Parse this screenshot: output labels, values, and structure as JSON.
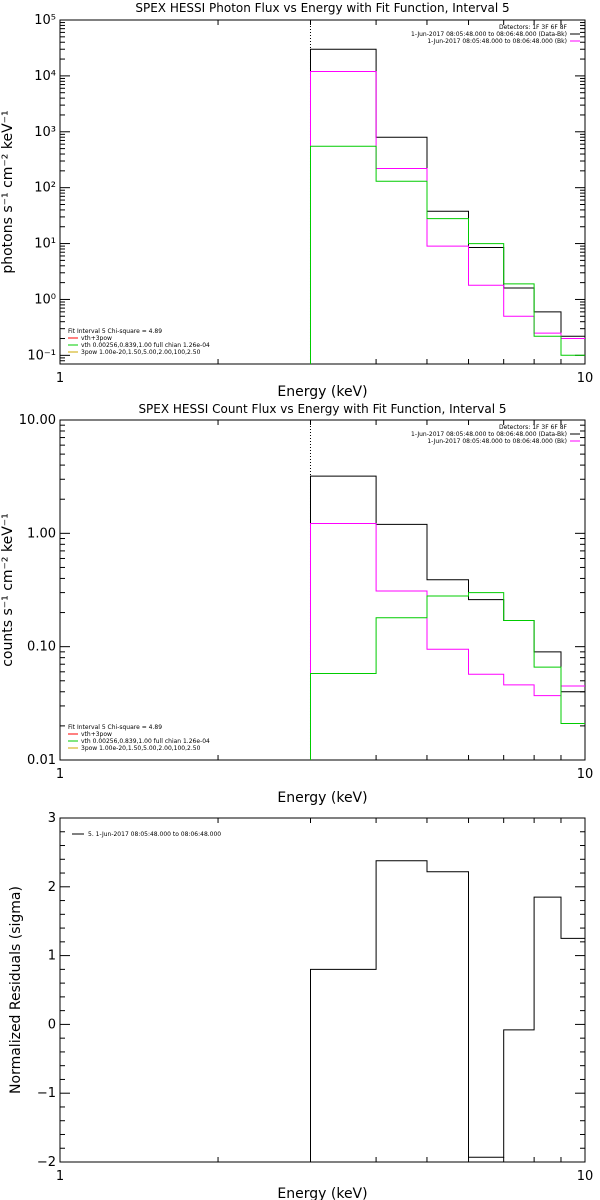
{
  "chart_data": [
    {
      "type": "line",
      "title": "SPEX HESSI Photon Flux vs Energy with Fit Function, Interval 5",
      "xlabel": "Energy (keV)",
      "ylabel": "photons s⁻¹ cm⁻² keV⁻¹",
      "xscale": "log",
      "yscale": "log",
      "xlim": [
        1,
        10
      ],
      "ylim": [
        0.07,
        100000
      ],
      "x_ticks": [
        "1",
        "10"
      ],
      "y_ticks": [
        "10⁻¹",
        "10⁰",
        "10¹",
        "10²",
        "10³",
        "10⁴",
        "10⁵"
      ],
      "y_tick_values": [
        0.1,
        1,
        10,
        100,
        1000,
        10000,
        100000
      ],
      "marker_line_x": 3,
      "bin_edges": [
        3,
        4,
        5,
        6,
        7,
        8,
        9,
        10
      ],
      "info_lines": [
        "Detectors: 1F 3F 6F 8F",
        "1-Jun-2017 08:05:48.000 to 08:06:48.000 (Data-Bk)",
        "1-Jun-2017 08:05:48.000 to 08:06:48.000 (Bk)"
      ],
      "info_colors": [
        "#000000",
        "#000000",
        "#ff00ff"
      ],
      "fit_lines": [
        "Fit Interval 5   Chi-square = 4.89",
        "vth+3pow",
        "vth 0.00256,0.839,1.00  full chian 1.26e-04",
        "3pow 1.00e-20,1.50,5.00,2.00,100,2.50"
      ],
      "fit_colors": [
        "#000000",
        "#ff0000",
        "#00cc00",
        "#ccaa00"
      ],
      "series": [
        {
          "color": "#000000",
          "values": [
            30000,
            800,
            38,
            8.5,
            1.6,
            0.6,
            0.22
          ]
        },
        {
          "color": "#ff00ff",
          "values": [
            12000,
            220,
            9,
            1.8,
            0.5,
            0.25,
            0.2
          ]
        },
        {
          "color": "#00cc00",
          "values": [
            550,
            130,
            28,
            10,
            1.9,
            0.22,
            0.1
          ]
        }
      ]
    },
    {
      "type": "line",
      "title": "SPEX HESSI Count Flux vs Energy with Fit Function, Interval 5",
      "xlabel": "Energy (keV)",
      "ylabel": "counts s⁻¹ cm⁻² keV⁻¹",
      "xscale": "log",
      "yscale": "log",
      "xlim": [
        1,
        10
      ],
      "ylim": [
        0.01,
        10
      ],
      "x_ticks": [
        "1",
        "10"
      ],
      "y_ticks": [
        "0.01",
        "0.10",
        "1.00",
        "10.00"
      ],
      "y_tick_values": [
        0.01,
        0.1,
        1,
        10
      ],
      "marker_line_x": 3,
      "bin_edges": [
        3,
        4,
        5,
        6,
        7,
        8,
        9,
        10
      ],
      "info_lines": [
        "Detectors: 1F 3F 6F 8F",
        "1-Jun-2017 08:05:48.000 to 08:06:48.000 (Data-Bk)",
        "1-Jun-2017 08:05:48.000 to 08:06:48.000 (Bk)"
      ],
      "info_colors": [
        "#000000",
        "#000000",
        "#ff00ff"
      ],
      "fit_lines": [
        "Fit Interval 5   Chi-square = 4.89",
        "vth+3pow",
        "vth 0.00256,0.839,1.00  full chian 1.26e-04",
        "3pow 1.00e-20,1.50,5.00,2.00,100,2.50"
      ],
      "fit_colors": [
        "#000000",
        "#ff0000",
        "#00cc00",
        "#ccaa00"
      ],
      "series": [
        {
          "color": "#000000",
          "values": [
            3.2,
            1.2,
            0.39,
            0.26,
            0.17,
            0.09,
            0.04
          ]
        },
        {
          "color": "#ff00ff",
          "values": [
            1.22,
            0.31,
            0.095,
            0.057,
            0.046,
            0.037,
            0.045
          ]
        },
        {
          "color": "#00cc00",
          "values": [
            0.058,
            0.18,
            0.28,
            0.3,
            0.17,
            0.066,
            0.021
          ]
        }
      ]
    },
    {
      "type": "line",
      "title": "",
      "xlabel": "Energy (keV)",
      "ylabel": "Normalized Residuals (sigma)",
      "xscale": "log",
      "yscale": "linear",
      "xlim": [
        1,
        10
      ],
      "ylim": [
        -2,
        3
      ],
      "x_ticks": [
        "1",
        "10"
      ],
      "y_ticks": [
        "−2",
        "−1",
        "0",
        "1",
        "2",
        "3"
      ],
      "y_tick_values": [
        -2,
        -1,
        0,
        1,
        2,
        3
      ],
      "bin_edges": [
        3,
        4,
        5,
        6,
        7,
        8,
        9,
        10
      ],
      "legend_text": "5.  1-Jun-2017 08:05:48.000 to 08:06:48.000",
      "series": [
        {
          "color": "#000000",
          "values": [
            0.8,
            2.38,
            2.22,
            -1.93,
            -0.08,
            1.85,
            1.25
          ]
        }
      ]
    }
  ]
}
